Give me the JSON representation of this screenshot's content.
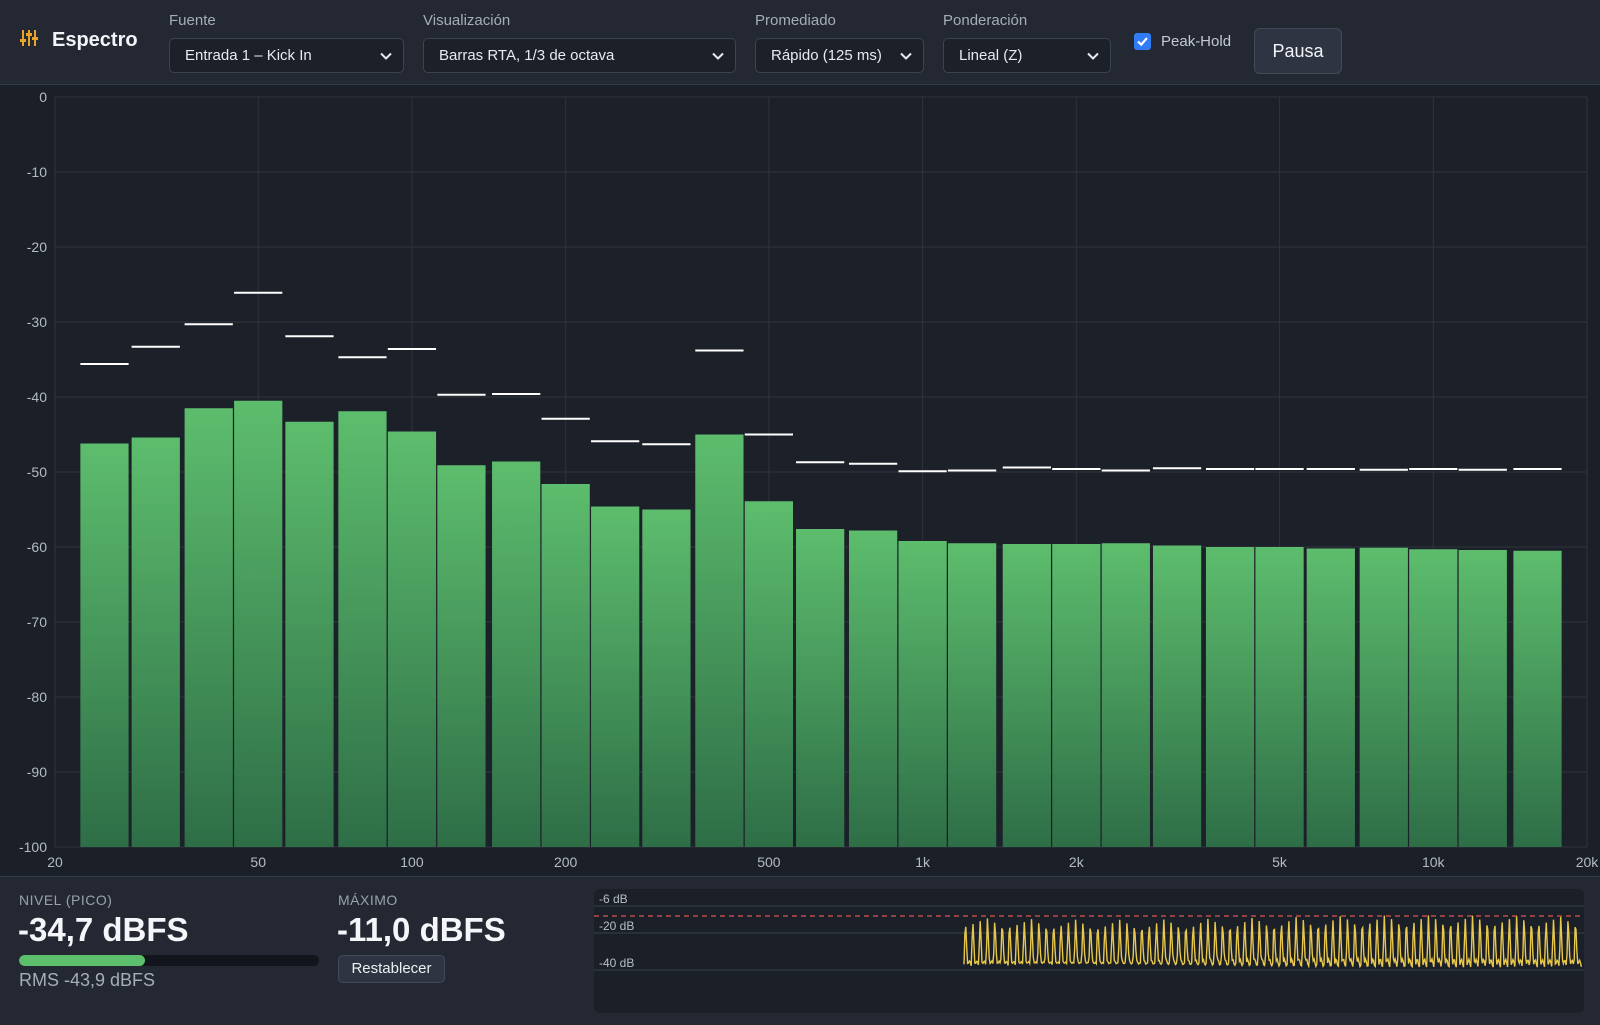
{
  "app": {
    "title": "Espectro",
    "icon": "equalizer-sliders-icon",
    "accent": "#e8a52a"
  },
  "toolbar": {
    "source": {
      "label": "Fuente",
      "value": "Entrada 1 – Kick In"
    },
    "view": {
      "label": "Visualización",
      "value": "Barras RTA, 1/3 de octava"
    },
    "averaging": {
      "label": "Promediado",
      "value": "Rápido (125 ms)"
    },
    "weighting": {
      "label": "Ponderación",
      "value": "Lineal (Z)"
    },
    "peak_hold": {
      "label": "Peak-Hold",
      "checked": true
    },
    "pause_label": "Pausa"
  },
  "chart_data": {
    "type": "bar",
    "x_scale": "log",
    "xlim": [
      20,
      20000
    ],
    "ylim": [
      -100,
      0
    ],
    "grid": true,
    "y_ticks": [
      "0",
      "-10",
      "-20",
      "-30",
      "-40",
      "-50",
      "-60",
      "-70",
      "-80",
      "-90",
      "-100"
    ],
    "x_ticks": [
      {
        "value": 20,
        "label": "20"
      },
      {
        "value": 50,
        "label": "50"
      },
      {
        "value": 100,
        "label": "100"
      },
      {
        "value": 200,
        "label": "200"
      },
      {
        "value": 500,
        "label": "500"
      },
      {
        "value": 1000,
        "label": "1k"
      },
      {
        "value": 2000,
        "label": "2k"
      },
      {
        "value": 5000,
        "label": "5k"
      },
      {
        "value": 10000,
        "label": "10k"
      },
      {
        "value": 20000,
        "label": "20k"
      }
    ],
    "band_centers_hz": [
      25,
      31.5,
      40,
      50,
      63,
      80,
      100,
      125,
      160,
      200,
      250,
      315,
      400,
      500,
      630,
      800,
      1000,
      1250,
      1600,
      2000,
      2500,
      3150,
      4000,
      5000,
      6300,
      8000,
      10000,
      12500,
      16000
    ],
    "levels_db": [
      -46.2,
      -45.4,
      -41.5,
      -40.5,
      -43.3,
      -41.9,
      -44.6,
      -49.1,
      -48.6,
      -51.6,
      -54.6,
      -55.0,
      -45.0,
      -53.9,
      -57.6,
      -57.8,
      -59.2,
      -59.5,
      -59.6,
      -59.6,
      -59.5,
      -59.8,
      -60.0,
      -60.0,
      -60.2,
      -60.1,
      -60.3,
      -60.4,
      -60.5
    ],
    "peak_hold_db": [
      -35.6,
      -33.3,
      -30.3,
      -26.1,
      -31.9,
      -34.7,
      -33.6,
      -39.7,
      -39.6,
      -42.9,
      -45.9,
      -46.3,
      -33.8,
      -45.0,
      -48.7,
      -48.9,
      -49.9,
      -49.8,
      -49.4,
      -49.6,
      -49.8,
      -49.5,
      -49.6,
      -49.6,
      -49.6,
      -49.7,
      -49.6,
      -49.7,
      -49.6
    ],
    "bar_color_top": "#5dbd6d",
    "bar_color_bottom": "#2e6e47",
    "peak_color": "#ffffff"
  },
  "meters": {
    "level": {
      "label": "NIVEL (PICO)",
      "value": "-34,7 dBFS",
      "fill_fraction": 0.42
    },
    "rms": "RMS -43,9 dBFS",
    "max": {
      "label": "MÁXIMO",
      "value": "-11,0 dBFS"
    },
    "reset_label": "Restablecer"
  },
  "history": {
    "labels": [
      "-6 dB",
      "-20 dB",
      "-40 dB"
    ],
    "threshold_color": "#d9534f",
    "trace_color": "#e8c84a"
  }
}
